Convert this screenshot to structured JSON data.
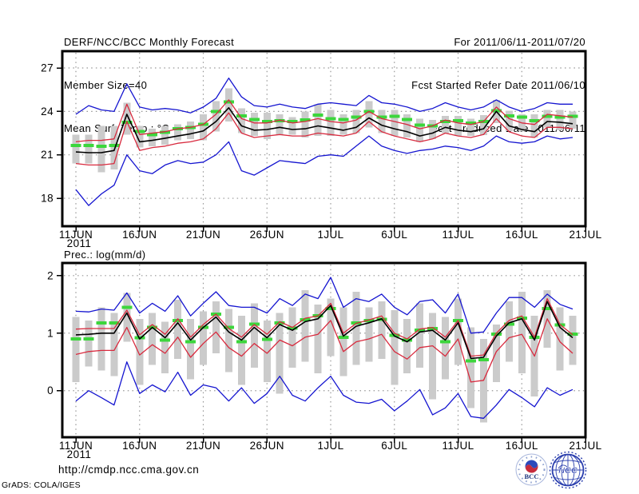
{
  "header": {
    "title": "DERF/NCC/BCC Monthly Forecast",
    "member_size": "Member Size=40",
    "for_range": "For 2011/06/11-2011/07/20",
    "refer_date": "Fcst Started Refer Date 2011/06/10",
    "produced_date": "Fcst Produced Date 2011/06/11"
  },
  "footer": {
    "url": "http://cmdp.ncc.cma.gov.cn",
    "credit": "GrADS: COLA/IGES",
    "logo_bcc_label": "BCC",
    "logo_ncc_label": "NCC"
  },
  "colors": {
    "envelope": "#1515d0",
    "quartile": "#d82a3e",
    "mean": "#000000",
    "obs": "#3cd63c",
    "spread_bar": "#cbcbcb",
    "grid": "#969696",
    "frame": "#000000"
  },
  "chart_data": [
    {
      "type": "line",
      "title": "Mean Surf. Temp.: °C",
      "ylabel": "°C",
      "ylim": [
        16.07,
        28.16
      ],
      "y_ticks": [
        27,
        24,
        21,
        18
      ],
      "x_tick_days": [
        0,
        5,
        10,
        15,
        20,
        25,
        30,
        35,
        40
      ],
      "x_tick_labels": [
        "11JUN",
        "16JUN",
        "21JUN",
        "26JUN",
        "1JUL",
        "6JUL",
        "11JUL",
        "16JUL",
        "21JUL"
      ],
      "year_label": "2011",
      "n_days": 40,
      "grid": true,
      "series": {
        "spread": {
          "label": "ensemble spread bars",
          "color": "#cbcbcb",
          "lo": [
            20.4,
            20.4,
            19.8,
            20.0,
            22.4,
            21.5,
            21.6,
            21.7,
            22.0,
            22.1,
            22.0,
            22.6,
            23.3,
            22.5,
            22.3,
            22.1,
            22.4,
            22.4,
            22.2,
            22.3,
            22.3,
            22.4,
            22.5,
            22.9,
            22.5,
            22.3,
            22.2,
            21.9,
            22.1,
            22.5,
            22.3,
            22.3,
            22.35,
            23.2,
            22.65,
            22.6,
            22.2,
            22.9,
            22.7,
            22.8
          ],
          "hi": [
            22.4,
            22.4,
            23.0,
            23.0,
            24.6,
            23.0,
            22.8,
            23.0,
            23.1,
            23.3,
            23.8,
            24.7,
            25.6,
            24.2,
            23.9,
            23.9,
            23.8,
            23.6,
            24.0,
            24.5,
            24.1,
            23.8,
            24.1,
            24.7,
            24.1,
            24.1,
            23.8,
            23.5,
            23.4,
            23.7,
            23.7,
            23.5,
            23.75,
            24.8,
            24.05,
            23.8,
            23.8,
            24.1,
            24.1,
            24.0
          ]
        },
        "obs": {
          "label": "climatology dashes",
          "color": "#3cd63c",
          "values": [
            21.65,
            21.65,
            21.6,
            21.65,
            23.25,
            22.6,
            22.4,
            22.55,
            22.8,
            22.9,
            23.1,
            24.0,
            24.65,
            23.7,
            23.45,
            23.3,
            23.35,
            23.3,
            23.4,
            23.75,
            23.5,
            23.45,
            23.6,
            24.0,
            23.6,
            23.65,
            23.45,
            23.05,
            23.0,
            23.3,
            23.35,
            23.2,
            23.3,
            24.05,
            23.7,
            23.6,
            23.35,
            23.65,
            23.6,
            23.65
          ]
        },
        "max": {
          "label": "ensemble max",
          "color": "#1515d0",
          "values": [
            23.8,
            24.4,
            24.1,
            24.0,
            25.9,
            24.3,
            24.1,
            24.2,
            24.1,
            23.9,
            24.3,
            24.9,
            26.3,
            25.0,
            24.4,
            24.3,
            24.5,
            24.3,
            24.2,
            24.5,
            24.6,
            24.5,
            24.4,
            25.1,
            24.6,
            24.5,
            24.3,
            24.0,
            24.2,
            24.6,
            24.3,
            24.1,
            24.3,
            24.8,
            24.3,
            24.0,
            24.2,
            24.6,
            24.5,
            24.5
          ]
        },
        "min": {
          "label": "ensemble min",
          "color": "#1515d0",
          "values": [
            18.6,
            17.5,
            18.3,
            18.9,
            21.0,
            19.9,
            19.7,
            20.3,
            20.6,
            20.4,
            20.5,
            21.0,
            21.9,
            19.9,
            19.6,
            20.1,
            20.6,
            20.5,
            20.4,
            20.9,
            21.0,
            20.9,
            21.6,
            22.3,
            21.6,
            21.3,
            21.1,
            21.3,
            21.4,
            21.6,
            21.5,
            21.3,
            21.6,
            22.3,
            21.9,
            21.8,
            21.9,
            22.3,
            22.1,
            22.2
          ]
        },
        "upper": {
          "label": "upper quartile",
          "color": "#d82a3e",
          "values": [
            21.9,
            22.0,
            22.0,
            22.1,
            24.5,
            22.4,
            22.5,
            22.6,
            22.8,
            22.9,
            23.1,
            23.8,
            24.8,
            23.5,
            23.2,
            23.2,
            23.4,
            23.2,
            23.3,
            23.5,
            23.3,
            23.2,
            23.4,
            24.0,
            23.5,
            23.3,
            23.1,
            22.8,
            23.0,
            23.4,
            23.2,
            23.1,
            23.3,
            24.3,
            23.5,
            23.2,
            23.1,
            23.8,
            23.7,
            23.6
          ]
        },
        "lower": {
          "label": "lower quartile",
          "color": "#d82a3e",
          "values": [
            20.4,
            20.3,
            20.3,
            20.4,
            23.3,
            21.3,
            21.5,
            21.6,
            21.8,
            21.9,
            22.1,
            22.8,
            23.9,
            22.5,
            22.2,
            22.3,
            22.4,
            22.3,
            22.3,
            22.5,
            22.4,
            22.3,
            22.5,
            23.3,
            22.6,
            22.3,
            22.1,
            21.9,
            22.1,
            22.5,
            22.3,
            22.2,
            22.4,
            23.5,
            22.6,
            22.3,
            22.2,
            22.9,
            22.9,
            22.8
          ]
        },
        "mean": {
          "label": "ensemble mean",
          "color": "#000000",
          "values": [
            21.2,
            21.15,
            21.15,
            21.3,
            23.8,
            21.9,
            22.0,
            22.15,
            22.3,
            22.45,
            22.65,
            23.3,
            24.25,
            23.0,
            22.7,
            22.75,
            22.9,
            22.75,
            22.8,
            23.0,
            22.85,
            22.7,
            22.9,
            23.55,
            23.05,
            22.8,
            22.6,
            22.3,
            22.5,
            22.9,
            22.7,
            22.6,
            22.8,
            24.0,
            23.0,
            22.75,
            22.6,
            23.3,
            23.25,
            23.15
          ]
        }
      }
    },
    {
      "type": "line",
      "title": "Prec.: log(mm/d)",
      "ylabel": "log(mm/d)",
      "ylim": [
        -0.81,
        2.22
      ],
      "y_ticks": [
        2,
        1,
        0
      ],
      "x_tick_days": [
        0,
        5,
        10,
        15,
        20,
        25,
        30,
        35,
        40
      ],
      "x_tick_labels": [
        "11JUN",
        "16JUN",
        "21JUN",
        "26JUN",
        "1JUL",
        "6JUL",
        "11JUL",
        "16JUL",
        "21JUL"
      ],
      "year_label": "2011",
      "n_days": 40,
      "grid": true,
      "series": {
        "spread": {
          "label": "ensemble spread bars",
          "color": "#cbcbcb",
          "lo": [
            0.15,
            0.42,
            0.35,
            0.25,
            0.85,
            0.1,
            0.45,
            0.3,
            0.55,
            0.2,
            0.45,
            0.65,
            0.32,
            0.1,
            0.4,
            0.15,
            -0.05,
            0.4,
            0.5,
            0.3,
            0.6,
            0.25,
            0.45,
            0.5,
            0.55,
            0.1,
            0.3,
            0.4,
            -0.15,
            0.2,
            0.45,
            -0.3,
            -0.55,
            0.15,
            0.5,
            0.3,
            -0.1,
            0.75,
            0.35,
            0.45
          ],
          "hi": [
            1.28,
            1.22,
            1.45,
            1.35,
            1.7,
            1.25,
            1.35,
            1.2,
            1.58,
            1.25,
            1.38,
            1.55,
            1.42,
            1.3,
            1.52,
            1.22,
            1.35,
            1.45,
            1.75,
            1.5,
            1.6,
            1.45,
            1.72,
            1.45,
            1.55,
            1.4,
            1.25,
            1.52,
            1.35,
            1.28,
            1.6,
            1.1,
            0.9,
            1.15,
            1.55,
            1.72,
            1.3,
            1.75,
            1.45,
            1.3
          ]
        },
        "obs": {
          "label": "climatology dashes",
          "color": "#3cd63c",
          "values": [
            0.9,
            0.9,
            1.18,
            1.18,
            1.45,
            0.92,
            1.1,
            0.88,
            1.22,
            0.85,
            1.1,
            1.33,
            1.1,
            0.85,
            1.16,
            0.89,
            1.18,
            1.09,
            1.23,
            1.3,
            1.43,
            0.93,
            1.18,
            1.22,
            1.24,
            0.96,
            0.88,
            1.05,
            1.08,
            0.85,
            1.22,
            0.52,
            0.54,
            0.98,
            1.16,
            1.26,
            0.93,
            1.43,
            1.14,
            0.98
          ]
        },
        "max": {
          "label": "ensemble max",
          "color": "#1515d0",
          "values": [
            1.38,
            1.37,
            1.42,
            1.4,
            1.7,
            1.35,
            1.52,
            1.38,
            1.65,
            1.3,
            1.52,
            1.72,
            1.48,
            1.45,
            1.45,
            1.35,
            1.6,
            1.48,
            1.68,
            1.6,
            1.97,
            1.45,
            1.6,
            1.55,
            1.68,
            1.45,
            1.32,
            1.55,
            1.58,
            1.35,
            1.68,
            1.0,
            1.02,
            1.35,
            1.62,
            1.62,
            1.45,
            1.68,
            1.5,
            1.42
          ]
        },
        "min": {
          "label": "ensemble min",
          "color": "#1515d0",
          "values": [
            -0.18,
            0.0,
            -0.12,
            -0.25,
            0.5,
            -0.05,
            0.1,
            -0.02,
            0.32,
            -0.08,
            0.1,
            0.05,
            -0.18,
            0.05,
            -0.22,
            -0.05,
            0.25,
            -0.08,
            -0.18,
            0.05,
            0.25,
            -0.08,
            -0.2,
            -0.22,
            -0.15,
            -0.35,
            -0.18,
            0.02,
            -0.42,
            -0.3,
            -0.05,
            -0.45,
            -0.48,
            -0.25,
            0.02,
            -0.12,
            -0.28,
            0.05,
            -0.08,
            0.02
          ]
        },
        "upper": {
          "label": "upper quartile",
          "color": "#d82a3e",
          "values": [
            1.07,
            1.08,
            1.08,
            1.08,
            1.4,
            0.97,
            1.15,
            0.98,
            1.25,
            0.93,
            1.15,
            1.33,
            1.08,
            0.93,
            1.15,
            0.98,
            1.2,
            1.1,
            1.26,
            1.3,
            1.52,
            1.0,
            1.17,
            1.23,
            1.3,
            1.0,
            0.9,
            1.07,
            1.1,
            0.93,
            1.22,
            0.6,
            0.62,
            1.0,
            1.22,
            1.3,
            0.93,
            1.6,
            1.15,
            0.97
          ]
        },
        "lower": {
          "label": "lower quartile",
          "color": "#d82a3e",
          "values": [
            0.63,
            0.68,
            0.7,
            0.7,
            1.1,
            0.62,
            0.8,
            0.65,
            0.93,
            0.58,
            0.82,
            1.02,
            0.75,
            0.6,
            0.82,
            0.65,
            0.88,
            0.78,
            0.93,
            0.98,
            1.22,
            0.68,
            0.85,
            0.9,
            0.98,
            0.68,
            0.55,
            0.75,
            0.78,
            0.6,
            0.9,
            0.15,
            0.18,
            0.68,
            0.92,
            0.98,
            0.6,
            1.25,
            0.85,
            0.65
          ]
        },
        "mean": {
          "label": "ensemble mean",
          "color": "#000000",
          "values": [
            0.97,
            0.98,
            1.0,
            1.0,
            1.35,
            0.9,
            1.1,
            0.92,
            1.18,
            0.88,
            1.1,
            1.28,
            1.02,
            0.88,
            1.1,
            0.92,
            1.15,
            1.05,
            1.2,
            1.25,
            1.48,
            0.95,
            1.12,
            1.18,
            1.25,
            0.95,
            0.85,
            1.02,
            1.05,
            0.88,
            1.18,
            0.56,
            0.58,
            0.95,
            1.18,
            1.25,
            0.88,
            1.55,
            1.1,
            0.92
          ]
        }
      }
    }
  ]
}
